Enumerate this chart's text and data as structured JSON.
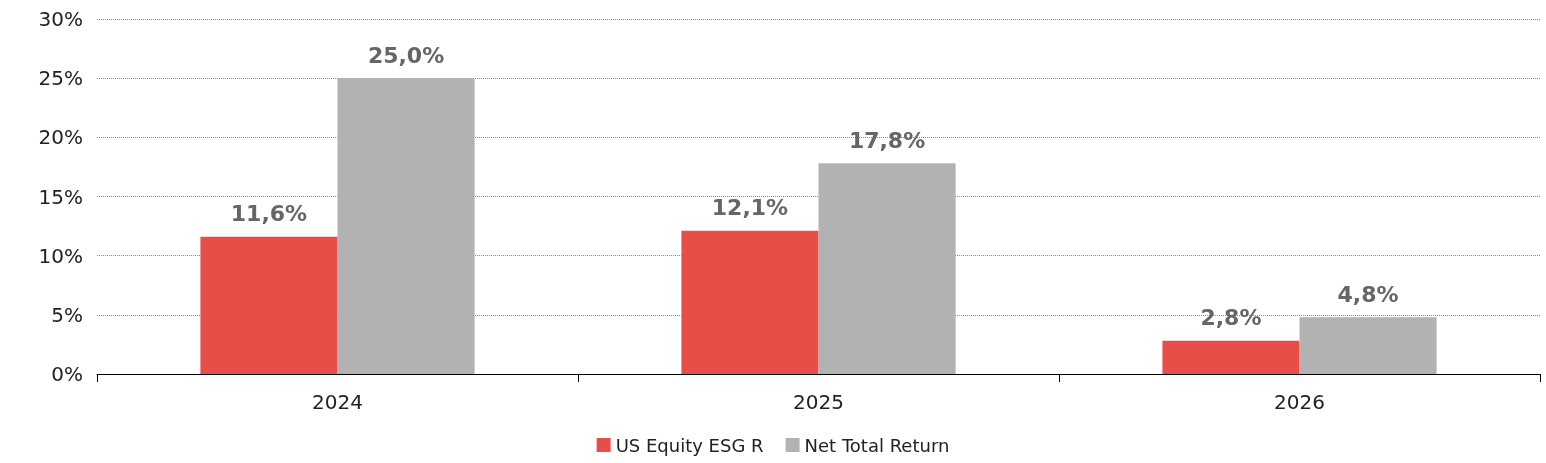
{
  "chart_data": {
    "type": "bar",
    "categories": [
      "2024",
      "2025",
      "2026"
    ],
    "series": [
      {
        "name": "US Equity ESG R",
        "color": "#e84e48",
        "values": [
          11.6,
          12.1,
          2.8
        ],
        "value_labels": [
          "11,6%",
          "12,1%",
          "2,8%"
        ]
      },
      {
        "name": "Net Total Return",
        "color": "#b2b2b2",
        "values": [
          25.0,
          17.8,
          4.8
        ],
        "value_labels": [
          "25,0%",
          "17,8%",
          "4,8%"
        ]
      }
    ],
    "ylim": [
      0,
      30
    ],
    "yticks": [
      {
        "value": 0,
        "label": "0%"
      },
      {
        "value": 5,
        "label": "5%"
      },
      {
        "value": 10,
        "label": "10%"
      },
      {
        "value": 15,
        "label": "15%"
      },
      {
        "value": 20,
        "label": "20%"
      },
      {
        "value": 25,
        "label": "25%"
      },
      {
        "value": 30,
        "label": "30%"
      }
    ],
    "grid": "y",
    "legend": "bottom"
  }
}
